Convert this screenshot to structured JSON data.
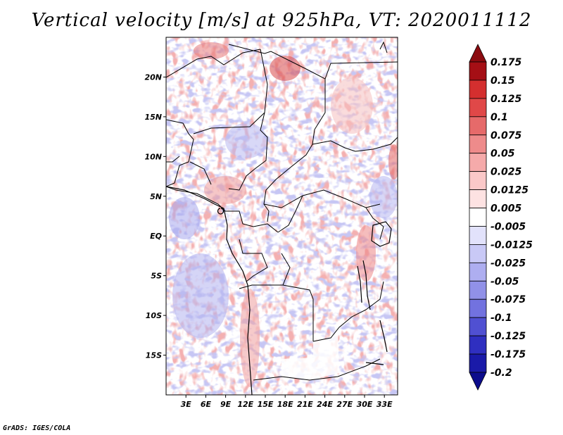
{
  "title": "Vertical velocity [m/s] at 925hPa, VT: 2020011112",
  "footer": "GrADS: IGES/COLA",
  "map": {
    "variable": "Vertical velocity",
    "units": "m/s",
    "level": "925hPa",
    "valid_time": "2020011112",
    "lat_range": [
      -20,
      25
    ],
    "lon_range": [
      0,
      35
    ],
    "lat_ticks": [
      {
        "value": 20,
        "label": "20N"
      },
      {
        "value": 15,
        "label": "15N"
      },
      {
        "value": 10,
        "label": "10N"
      },
      {
        "value": 5,
        "label": "5N"
      },
      {
        "value": 0,
        "label": "EQ"
      },
      {
        "value": -5,
        "label": "5S"
      },
      {
        "value": -10,
        "label": "10S"
      },
      {
        "value": -15,
        "label": "15S"
      }
    ],
    "lon_ticks": [
      {
        "value": 3,
        "label": "3E"
      },
      {
        "value": 6,
        "label": "6E"
      },
      {
        "value": 9,
        "label": "9E"
      },
      {
        "value": 12,
        "label": "12E"
      },
      {
        "value": 15,
        "label": "15E"
      },
      {
        "value": 18,
        "label": "18E"
      },
      {
        "value": 21,
        "label": "21E"
      },
      {
        "value": 24,
        "label": "24E"
      },
      {
        "value": 27,
        "label": "27E"
      },
      {
        "value": 30,
        "label": "30E"
      },
      {
        "value": 33,
        "label": "33E"
      }
    ]
  },
  "colorbar": {
    "levels": [
      {
        "label": "0.175",
        "color": "#a50f15"
      },
      {
        "label": "0.15",
        "color": "#c01a1f"
      },
      {
        "label": "0.125",
        "color": "#d42f2f"
      },
      {
        "label": "0.1",
        "color": "#e04848"
      },
      {
        "label": "0.075",
        "color": "#e66a6a"
      },
      {
        "label": "0.05",
        "color": "#ee8b8b"
      },
      {
        "label": "0.025",
        "color": "#f5aaaa"
      },
      {
        "label": "0.0125",
        "color": "#fac8c8"
      },
      {
        "label": "0.005",
        "color": "#fde2e2"
      },
      {
        "label": "-0.005",
        "color": "#ffffff"
      },
      {
        "label": "-0.0125",
        "color": "#e2e2fb"
      },
      {
        "label": "-0.025",
        "color": "#c9c9f6"
      },
      {
        "label": "-0.05",
        "color": "#aeaef0"
      },
      {
        "label": "-0.075",
        "color": "#9191e8"
      },
      {
        "label": "-0.1",
        "color": "#7272df"
      },
      {
        "label": "-0.125",
        "color": "#5050d2"
      },
      {
        "label": "-0.175",
        "color": "#2f2fc0"
      },
      {
        "label": "-0.2",
        "color": "#1a1aa8"
      }
    ],
    "top_color": "#8b0b10",
    "bottom_color": "#0c0c8c"
  }
}
